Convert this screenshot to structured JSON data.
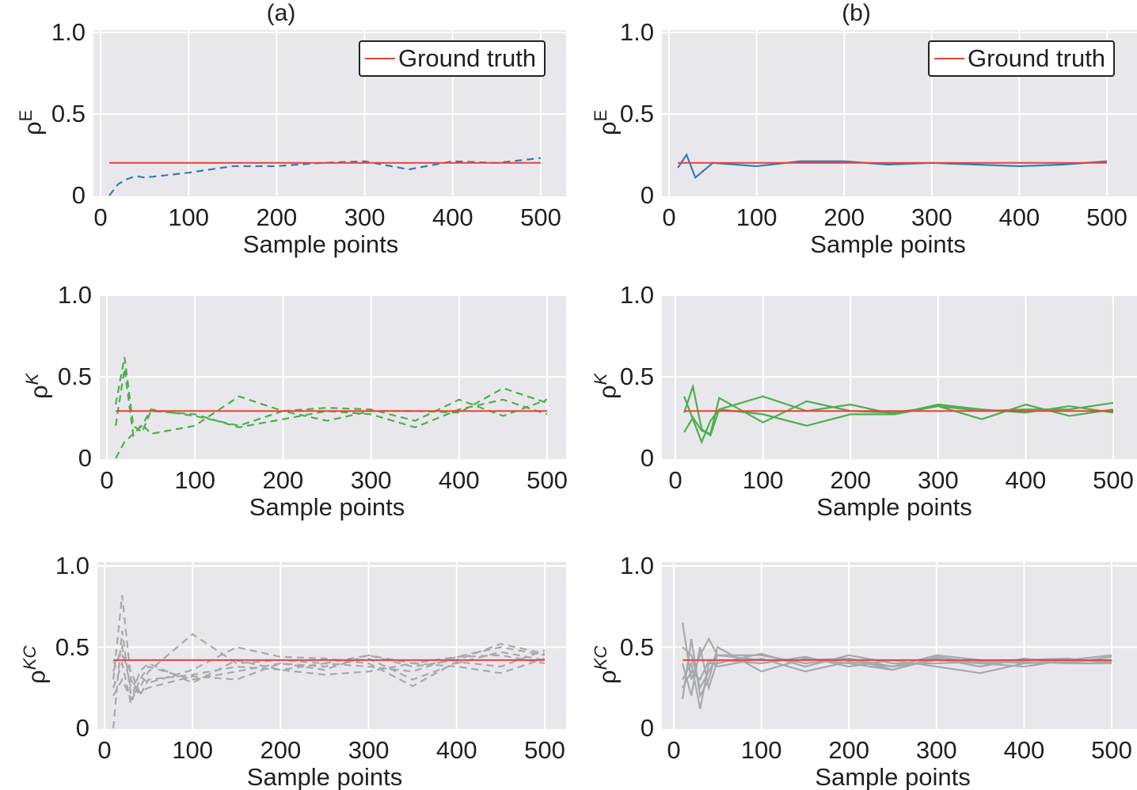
{
  "chart_data": [
    {
      "type": "line",
      "panel_title": "(a)",
      "ylabel_base": "ρ",
      "ylabel_sup": "E",
      "xlabel": "Sample points",
      "xticks": [
        "0",
        "100",
        "200",
        "300",
        "400",
        "500"
      ],
      "yticks": [
        "0",
        "0.5",
        "1.0"
      ],
      "xlim": [
        0,
        500
      ],
      "ylim": [
        0,
        1
      ],
      "grid": true,
      "legend": {
        "label": "Ground truth",
        "placement": "top-right"
      },
      "truth": {
        "value": 0.2,
        "color": "#e8413a"
      },
      "line_style": "dashed",
      "series_color": "#3a78b5",
      "x": [
        10,
        20,
        30,
        40,
        50,
        100,
        150,
        200,
        250,
        300,
        350,
        400,
        450,
        500
      ],
      "series": [
        {
          "values": [
            0.0,
            0.07,
            0.1,
            0.12,
            0.11,
            0.14,
            0.18,
            0.18,
            0.2,
            0.21,
            0.16,
            0.21,
            0.2,
            0.23
          ]
        }
      ]
    },
    {
      "type": "line",
      "panel_title": "(b)",
      "ylabel_base": "ρ",
      "ylabel_sup": "E",
      "xlabel": "Sample points",
      "xticks": [
        "0",
        "100",
        "200",
        "300",
        "400",
        "500"
      ],
      "yticks": [
        "0",
        "0.5",
        "1.0"
      ],
      "xlim": [
        0,
        500
      ],
      "ylim": [
        0,
        1
      ],
      "grid": true,
      "legend": {
        "label": "Ground truth",
        "placement": "top-right"
      },
      "truth": {
        "value": 0.2,
        "color": "#e8413a"
      },
      "line_style": "solid",
      "series_color": "#3a78b5",
      "x": [
        10,
        20,
        30,
        50,
        100,
        150,
        200,
        250,
        300,
        350,
        400,
        450,
        500
      ],
      "series": [
        {
          "values": [
            0.17,
            0.25,
            0.11,
            0.2,
            0.18,
            0.21,
            0.21,
            0.19,
            0.2,
            0.19,
            0.18,
            0.19,
            0.21
          ]
        }
      ]
    },
    {
      "type": "line",
      "panel_title": "",
      "ylabel_base": "ρ",
      "ylabel_sup": "K",
      "xlabel": "Sample points",
      "xticks": [
        "0",
        "100",
        "200",
        "300",
        "400",
        "500"
      ],
      "yticks": [
        "0",
        "0.5",
        "1.0"
      ],
      "xlim": [
        0,
        500
      ],
      "ylim": [
        0,
        1
      ],
      "grid": true,
      "truth": {
        "value": 0.29,
        "color": "#e8413a"
      },
      "line_style": "dashed",
      "series_color": "#4fae4f",
      "x": [
        10,
        20,
        30,
        40,
        50,
        100,
        150,
        200,
        250,
        300,
        350,
        400,
        450,
        500
      ],
      "series": [
        {
          "values": [
            0.33,
            0.62,
            0.2,
            0.16,
            0.29,
            0.27,
            0.19,
            0.24,
            0.29,
            0.27,
            0.19,
            0.3,
            0.36,
            0.27
          ]
        },
        {
          "values": [
            0.2,
            0.55,
            0.14,
            0.21,
            0.15,
            0.2,
            0.38,
            0.29,
            0.31,
            0.3,
            0.23,
            0.36,
            0.26,
            0.36
          ]
        },
        {
          "values": [
            0.0,
            0.1,
            0.15,
            0.2,
            0.3,
            0.26,
            0.2,
            0.29,
            0.23,
            0.29,
            0.29,
            0.28,
            0.43,
            0.34
          ]
        }
      ]
    },
    {
      "type": "line",
      "panel_title": "",
      "ylabel_base": "ρ",
      "ylabel_sup": "K",
      "xlabel": "Sample points",
      "xticks": [
        "0",
        "100",
        "200",
        "300",
        "400",
        "500"
      ],
      "yticks": [
        "0",
        "0.5",
        "1.0"
      ],
      "xlim": [
        0,
        500
      ],
      "ylim": [
        0,
        1
      ],
      "grid": true,
      "truth": {
        "value": 0.29,
        "color": "#e8413a"
      },
      "line_style": "solid",
      "series_color": "#4fae4f",
      "x": [
        10,
        20,
        30,
        40,
        50,
        100,
        150,
        200,
        250,
        300,
        350,
        400,
        450,
        500
      ],
      "series": [
        {
          "values": [
            0.38,
            0.24,
            0.1,
            0.23,
            0.3,
            0.38,
            0.29,
            0.33,
            0.27,
            0.33,
            0.3,
            0.28,
            0.32,
            0.28
          ]
        },
        {
          "values": [
            0.16,
            0.25,
            0.17,
            0.15,
            0.37,
            0.22,
            0.35,
            0.29,
            0.28,
            0.32,
            0.24,
            0.33,
            0.26,
            0.3
          ]
        },
        {
          "values": [
            0.28,
            0.44,
            0.18,
            0.14,
            0.3,
            0.27,
            0.2,
            0.27,
            0.27,
            0.32,
            0.29,
            0.3,
            0.3,
            0.34
          ]
        }
      ]
    },
    {
      "type": "line",
      "panel_title": "",
      "ylabel_base": "ρ",
      "ylabel_sup": "KC",
      "xlabel": "Sample points",
      "xticks": [
        "0",
        "100",
        "200",
        "300",
        "400",
        "500"
      ],
      "yticks": [
        "0",
        "0.5",
        "1.0"
      ],
      "xlim": [
        0,
        500
      ],
      "ylim": [
        0,
        1
      ],
      "grid": true,
      "truth": {
        "value": 0.42,
        "color": "#e8413a"
      },
      "line_style": "dashed",
      "series_color": "#a7a9ac",
      "x": [
        10,
        20,
        30,
        40,
        50,
        100,
        150,
        200,
        250,
        300,
        350,
        400,
        450,
        500
      ],
      "series": [
        {
          "values": [
            0.3,
            0.82,
            0.3,
            0.2,
            0.3,
            0.33,
            0.38,
            0.36,
            0.4,
            0.38,
            0.35,
            0.44,
            0.5,
            0.45
          ]
        },
        {
          "values": [
            0.0,
            0.6,
            0.2,
            0.25,
            0.35,
            0.58,
            0.4,
            0.42,
            0.4,
            0.45,
            0.38,
            0.42,
            0.52,
            0.46
          ]
        },
        {
          "values": [
            0.25,
            0.4,
            0.15,
            0.3,
            0.38,
            0.3,
            0.35,
            0.4,
            0.38,
            0.43,
            0.3,
            0.4,
            0.47,
            0.42
          ]
        },
        {
          "values": [
            0.35,
            0.5,
            0.25,
            0.32,
            0.28,
            0.36,
            0.5,
            0.44,
            0.43,
            0.4,
            0.26,
            0.41,
            0.38,
            0.48
          ]
        },
        {
          "values": [
            0.2,
            0.3,
            0.18,
            0.35,
            0.4,
            0.28,
            0.42,
            0.36,
            0.33,
            0.35,
            0.4,
            0.38,
            0.34,
            0.43
          ]
        },
        {
          "values": [
            0.4,
            0.45,
            0.35,
            0.22,
            0.25,
            0.32,
            0.3,
            0.4,
            0.36,
            0.45,
            0.4,
            0.44,
            0.45,
            0.4
          ]
        }
      ]
    },
    {
      "type": "line",
      "panel_title": "",
      "ylabel_base": "ρ",
      "ylabel_sup": "KC",
      "xlabel": "Sample points",
      "xticks": [
        "0",
        "100",
        "200",
        "300",
        "400",
        "500"
      ],
      "yticks": [
        "0",
        "0.5",
        "1.0"
      ],
      "xlim": [
        0,
        500
      ],
      "ylim": [
        0,
        1
      ],
      "grid": true,
      "truth": {
        "value": 0.42,
        "color": "#e8413a"
      },
      "line_style": "solid",
      "series_color": "#a7a9ac",
      "x": [
        10,
        20,
        30,
        40,
        50,
        100,
        150,
        200,
        250,
        300,
        350,
        400,
        450,
        500
      ],
      "series": [
        {
          "values": [
            0.65,
            0.3,
            0.45,
            0.55,
            0.45,
            0.45,
            0.4,
            0.43,
            0.38,
            0.45,
            0.42,
            0.4,
            0.42,
            0.45
          ]
        },
        {
          "values": [
            0.18,
            0.55,
            0.2,
            0.3,
            0.5,
            0.35,
            0.43,
            0.4,
            0.36,
            0.43,
            0.38,
            0.43,
            0.4,
            0.44
          ]
        },
        {
          "values": [
            0.3,
            0.4,
            0.12,
            0.4,
            0.4,
            0.46,
            0.38,
            0.45,
            0.4,
            0.4,
            0.41,
            0.42,
            0.43,
            0.4
          ]
        },
        {
          "values": [
            0.4,
            0.2,
            0.5,
            0.25,
            0.42,
            0.4,
            0.44,
            0.38,
            0.42,
            0.38,
            0.34,
            0.4,
            0.41,
            0.42
          ]
        },
        {
          "values": [
            0.25,
            0.35,
            0.3,
            0.42,
            0.38,
            0.43,
            0.35,
            0.41,
            0.38,
            0.42,
            0.4,
            0.38,
            0.42,
            0.41
          ]
        },
        {
          "values": [
            0.5,
            0.45,
            0.25,
            0.35,
            0.45,
            0.42,
            0.42,
            0.43,
            0.36,
            0.44,
            0.4,
            0.41,
            0.4,
            0.4
          ]
        }
      ]
    }
  ]
}
